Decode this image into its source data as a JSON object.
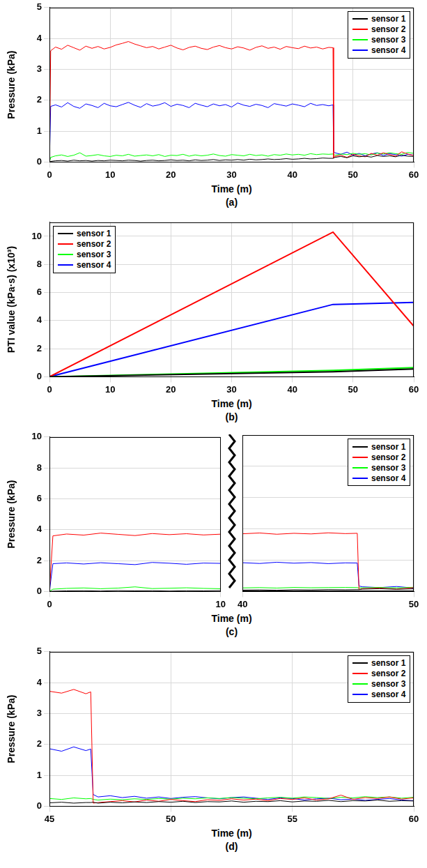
{
  "chart_data": [
    {
      "type": "line",
      "panel_label": "(a)",
      "x_label": "Time (m)",
      "y_label": "Pressure (kPa)",
      "xlim": [
        0,
        60
      ],
      "xticks": [
        0,
        10,
        20,
        30,
        40,
        50,
        60
      ],
      "ylim": [
        0,
        5
      ],
      "yticks": [
        0,
        1,
        2,
        3,
        4,
        5
      ],
      "grid": true,
      "legend": "upper right",
      "x": [
        0,
        0.2,
        1,
        2,
        3,
        4,
        5,
        6,
        7,
        8,
        9,
        10,
        11,
        12,
        13,
        14,
        15,
        16,
        17,
        18,
        19,
        20,
        21,
        22,
        23,
        24,
        25,
        26,
        27,
        28,
        29,
        30,
        31,
        32,
        33,
        34,
        35,
        36,
        37,
        38,
        39,
        40,
        41,
        42,
        43,
        44,
        45,
        46,
        46.7,
        46.8,
        47,
        48,
        49,
        50,
        51,
        52,
        53,
        54,
        55,
        56,
        57,
        58,
        59,
        60
      ],
      "series": [
        {
          "name": "sensor 1",
          "color": "#000000",
          "values": [
            0,
            0.02,
            0.04,
            0.05,
            0.03,
            0.06,
            0.04,
            0.05,
            0.03,
            0.05,
            0.04,
            0.06,
            0.05,
            0.04,
            0.06,
            0.05,
            0.03,
            0.05,
            0.06,
            0.04,
            0.05,
            0.07,
            0.05,
            0.06,
            0.04,
            0.07,
            0.05,
            0.06,
            0.08,
            0.05,
            0.07,
            0.06,
            0.08,
            0.06,
            0.09,
            0.07,
            0.08,
            0.1,
            0.08,
            0.09,
            0.11,
            0.09,
            0.1,
            0.12,
            0.1,
            0.11,
            0.13,
            0.12,
            0.12,
            0.12,
            0.15,
            0.18,
            0.14,
            0.2,
            0.17,
            0.19,
            0.16,
            0.21,
            0.18,
            0.2,
            0.17,
            0.22,
            0.19,
            0.18
          ]
        },
        {
          "name": "sensor 2",
          "color": "#ff0000",
          "values": [
            0,
            3.6,
            3.72,
            3.65,
            3.78,
            3.7,
            3.62,
            3.75,
            3.68,
            3.74,
            3.66,
            3.71,
            3.79,
            3.84,
            3.9,
            3.82,
            3.76,
            3.7,
            3.74,
            3.66,
            3.72,
            3.78,
            3.69,
            3.63,
            3.71,
            3.75,
            3.68,
            3.64,
            3.72,
            3.77,
            3.7,
            3.66,
            3.73,
            3.69,
            3.62,
            3.71,
            3.76,
            3.68,
            3.72,
            3.65,
            3.74,
            3.7,
            3.67,
            3.75,
            3.69,
            3.72,
            3.66,
            3.71,
            3.7,
            0.12,
            0.18,
            0.22,
            0.15,
            0.25,
            0.2,
            0.17,
            0.28,
            0.22,
            0.3,
            0.24,
            0.19,
            0.33,
            0.26,
            0.21
          ]
        },
        {
          "name": "sensor 3",
          "color": "#00ff00",
          "values": [
            0,
            0.15,
            0.2,
            0.23,
            0.18,
            0.22,
            0.3,
            0.19,
            0.21,
            0.24,
            0.2,
            0.18,
            0.22,
            0.2,
            0.25,
            0.19,
            0.21,
            0.23,
            0.2,
            0.24,
            0.18,
            0.22,
            0.21,
            0.25,
            0.19,
            0.23,
            0.2,
            0.22,
            0.26,
            0.21,
            0.19,
            0.24,
            0.22,
            0.2,
            0.25,
            0.21,
            0.23,
            0.19,
            0.24,
            0.22,
            0.26,
            0.23,
            0.25,
            0.22,
            0.27,
            0.24,
            0.26,
            0.25,
            0.26,
            0.25,
            0.22,
            0.26,
            0.24,
            0.28,
            0.25,
            0.27,
            0.23,
            0.29,
            0.26,
            0.3,
            0.27,
            0.25,
            0.31,
            0.28
          ]
        },
        {
          "name": "sensor 4",
          "color": "#0000ff",
          "values": [
            0,
            1.8,
            1.85,
            1.78,
            1.92,
            1.8,
            1.74,
            1.88,
            1.83,
            1.76,
            1.9,
            1.82,
            1.79,
            1.86,
            1.93,
            1.84,
            1.77,
            1.89,
            1.81,
            1.85,
            1.92,
            1.8,
            1.87,
            1.83,
            1.76,
            1.9,
            1.84,
            1.79,
            1.88,
            1.82,
            1.86,
            1.78,
            1.91,
            1.84,
            1.8,
            1.87,
            1.83,
            1.76,
            1.89,
            1.85,
            1.81,
            1.88,
            1.84,
            1.79,
            1.9,
            1.83,
            1.86,
            1.82,
            1.85,
            0.35,
            0.3,
            0.25,
            0.32,
            0.22,
            0.28,
            0.2,
            0.26,
            0.3,
            0.21,
            0.27,
            0.24,
            0.19,
            0.25,
            0.22
          ]
        }
      ]
    },
    {
      "type": "line",
      "panel_label": "(b)",
      "x_label": "Time (m)",
      "y_label": "PTI value (kPa·s) (x10³)",
      "xlim": [
        0,
        60
      ],
      "xticks": [
        0,
        10,
        20,
        30,
        40,
        50,
        60
      ],
      "ylim": [
        0,
        11
      ],
      "yticks": [
        0,
        2,
        4,
        6,
        8,
        10
      ],
      "grid": true,
      "legend": "upper left",
      "x": [
        0,
        46.7,
        60
      ],
      "series": [
        {
          "name": "sensor 1",
          "color": "#000000",
          "values": [
            0,
            0.35,
            0.55
          ]
        },
        {
          "name": "sensor 2",
          "color": "#ff0000",
          "values": [
            0,
            10.3,
            3.6
          ]
        },
        {
          "name": "sensor 3",
          "color": "#00ff00",
          "values": [
            0,
            0.45,
            0.65
          ]
        },
        {
          "name": "sensor 4",
          "color": "#0000ff",
          "values": [
            0,
            5.15,
            5.3
          ]
        }
      ]
    },
    {
      "type": "line",
      "panel_label": "(c)",
      "x_label": "Time (m)",
      "y_label": "Pressure (kPa)",
      "xlim": [
        0,
        50
      ],
      "x_break": [
        10,
        40
      ],
      "xticks": [
        0,
        10,
        40,
        50
      ],
      "ylim": [
        0,
        10
      ],
      "yticks": [
        0,
        2,
        4,
        6,
        8,
        10
      ],
      "grid": true,
      "legend": "upper right",
      "x": [
        0,
        0.2,
        1,
        2,
        3,
        4,
        5,
        6,
        7,
        8,
        9,
        10,
        40,
        41,
        42,
        43,
        44,
        45,
        46,
        46.7,
        46.8,
        47,
        48,
        49,
        50
      ],
      "series": [
        {
          "name": "sensor 1",
          "color": "#000000",
          "values": [
            0,
            0.02,
            0.04,
            0.05,
            0.03,
            0.06,
            0.04,
            0.05,
            0.03,
            0.05,
            0.04,
            0.06,
            0.09,
            0.1,
            0.08,
            0.11,
            0.1,
            0.12,
            0.11,
            0.12,
            0.12,
            0.15,
            0.18,
            0.14,
            0.17
          ]
        },
        {
          "name": "sensor 2",
          "color": "#ff0000",
          "values": [
            0,
            3.6,
            3.72,
            3.65,
            3.78,
            3.7,
            3.62,
            3.75,
            3.68,
            3.74,
            3.66,
            3.71,
            3.69,
            3.74,
            3.66,
            3.72,
            3.68,
            3.75,
            3.7,
            3.72,
            0.12,
            0.18,
            0.22,
            0.15,
            0.25
          ]
        },
        {
          "name": "sensor 3",
          "color": "#00ff00",
          "values": [
            0,
            0.15,
            0.2,
            0.23,
            0.18,
            0.22,
            0.3,
            0.19,
            0.21,
            0.24,
            0.2,
            0.18,
            0.23,
            0.25,
            0.22,
            0.26,
            0.24,
            0.25,
            0.26,
            0.25,
            0.22,
            0.24,
            0.26,
            0.23,
            0.27
          ]
        },
        {
          "name": "sensor 4",
          "color": "#0000ff",
          "values": [
            0,
            1.8,
            1.85,
            1.78,
            1.86,
            1.8,
            1.74,
            1.88,
            1.83,
            1.76,
            1.84,
            1.82,
            1.84,
            1.79,
            1.87,
            1.81,
            1.85,
            1.78,
            1.83,
            1.82,
            0.35,
            0.3,
            0.25,
            0.32,
            0.22
          ]
        }
      ]
    },
    {
      "type": "line",
      "panel_label": "(d)",
      "x_label": "Time (m)",
      "y_label": "Pressure (kPa)",
      "xlim": [
        45,
        60
      ],
      "xticks": [
        45,
        50,
        55,
        60
      ],
      "ylim": [
        0,
        5
      ],
      "yticks": [
        0,
        1,
        2,
        3,
        4,
        5
      ],
      "grid": true,
      "legend": "upper right",
      "x": [
        45,
        45.5,
        46,
        46.5,
        46.7,
        46.8,
        47,
        47.5,
        48,
        48.5,
        49,
        49.5,
        50,
        50.5,
        51,
        51.5,
        52,
        52.5,
        53,
        53.5,
        54,
        54.5,
        55,
        55.5,
        56,
        56.5,
        57,
        57.5,
        58,
        58.5,
        59,
        59.5,
        60
      ],
      "series": [
        {
          "name": "sensor 1",
          "color": "#000000",
          "values": [
            0.11,
            0.13,
            0.1,
            0.12,
            0.12,
            0.13,
            0.1,
            0.13,
            0.11,
            0.14,
            0.12,
            0.15,
            0.13,
            0.16,
            0.12,
            0.15,
            0.14,
            0.17,
            0.13,
            0.16,
            0.15,
            0.18,
            0.14,
            0.17,
            0.16,
            0.19,
            0.15,
            0.18,
            0.17,
            0.2,
            0.16,
            0.18,
            0.17
          ]
        },
        {
          "name": "sensor 2",
          "color": "#ff0000",
          "values": [
            3.72,
            3.66,
            3.78,
            3.64,
            3.7,
            0.1,
            0.12,
            0.15,
            0.18,
            0.14,
            0.2,
            0.16,
            0.22,
            0.18,
            0.15,
            0.21,
            0.19,
            0.24,
            0.2,
            0.23,
            0.18,
            0.25,
            0.22,
            0.27,
            0.2,
            0.24,
            0.36,
            0.22,
            0.28,
            0.25,
            0.3,
            0.23,
            0.27
          ]
        },
        {
          "name": "sensor 3",
          "color": "#00ff00",
          "values": [
            0.25,
            0.22,
            0.27,
            0.24,
            0.25,
            0.22,
            0.2,
            0.23,
            0.21,
            0.24,
            0.22,
            0.25,
            0.23,
            0.26,
            0.24,
            0.27,
            0.25,
            0.28,
            0.26,
            0.24,
            0.27,
            0.29,
            0.26,
            0.3,
            0.28,
            0.25,
            0.29,
            0.27,
            0.31,
            0.28,
            0.3,
            0.26,
            0.29
          ]
        },
        {
          "name": "sensor 4",
          "color": "#0000ff",
          "values": [
            1.86,
            1.78,
            1.92,
            1.8,
            1.85,
            0.38,
            0.3,
            0.34,
            0.28,
            0.32,
            0.26,
            0.3,
            0.25,
            0.29,
            0.31,
            0.27,
            0.24,
            0.28,
            0.3,
            0.26,
            0.22,
            0.27,
            0.25,
            0.2,
            0.24,
            0.26,
            0.21,
            0.23,
            0.19,
            0.22,
            0.25,
            0.2,
            0.18
          ]
        }
      ]
    }
  ]
}
